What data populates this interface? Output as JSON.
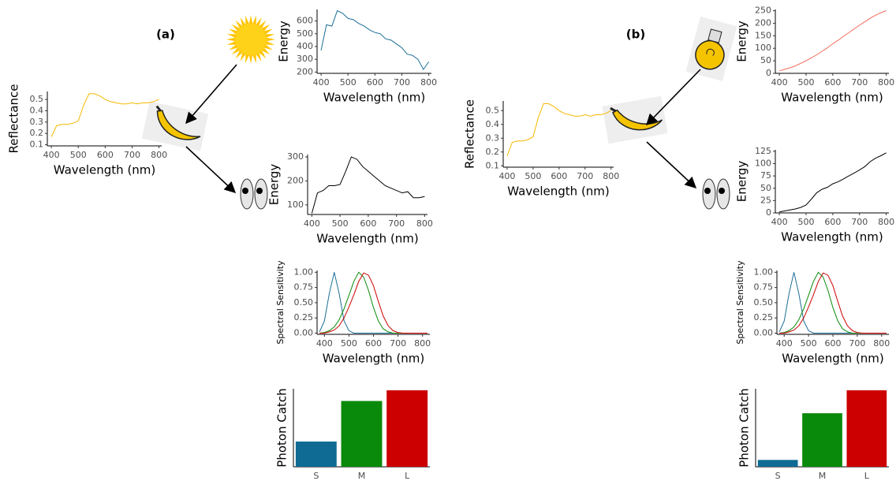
{
  "panels": [
    {
      "label": "(a)"
    },
    {
      "label": "(b)"
    }
  ],
  "chart_data": [
    {
      "type": "line",
      "x": [
        400,
        420,
        440,
        460,
        480,
        500,
        520,
        540,
        560,
        580,
        600,
        620,
        640,
        660,
        680,
        700,
        720,
        740,
        760,
        780,
        800
      ],
      "values": [
        0.17,
        0.27,
        0.28,
        0.28,
        0.29,
        0.31,
        0.45,
        0.55,
        0.55,
        0.53,
        0.5,
        0.48,
        0.47,
        0.46,
        0.46,
        0.47,
        0.46,
        0.47,
        0.47,
        0.48,
        0.5
      ],
      "color": "#f5b800",
      "xlim": [
        385,
        810
      ],
      "ylim": [
        0.09,
        0.57
      ],
      "xticks": [
        400,
        500,
        600,
        700,
        800
      ],
      "yticks": [
        0.1,
        0.2,
        0.3,
        0.4,
        0.5
      ],
      "x_label": "Wavelength (nm)",
      "y_label": "Reflectance"
    },
    {
      "type": "line",
      "x": [
        400,
        420,
        440,
        460,
        480,
        500,
        520,
        540,
        560,
        580,
        600,
        620,
        640,
        660,
        680,
        700,
        720,
        740,
        760,
        780,
        800
      ],
      "values": [
        370,
        570,
        560,
        680,
        660,
        620,
        610,
        580,
        560,
        530,
        510,
        500,
        460,
        450,
        420,
        390,
        340,
        330,
        300,
        220,
        280
      ],
      "color": "#1a6e96",
      "xlim": [
        385,
        810
      ],
      "ylim": [
        190,
        690
      ],
      "xticks": [
        400,
        500,
        600,
        700,
        800
      ],
      "yticks": [
        200,
        300,
        400,
        500,
        600
      ],
      "x_label": "Wavelength (nm)",
      "y_label": "Energy"
    },
    {
      "type": "line",
      "x": [
        400,
        420,
        440,
        460,
        480,
        500,
        520,
        540,
        560,
        580,
        600,
        620,
        640,
        660,
        680,
        700,
        720,
        740,
        760,
        780,
        800
      ],
      "values": [
        65,
        150,
        160,
        180,
        180,
        185,
        240,
        300,
        290,
        260,
        240,
        220,
        200,
        180,
        170,
        160,
        150,
        155,
        130,
        130,
        135
      ],
      "color": "#000000",
      "xlim": [
        385,
        810
      ],
      "ylim": [
        60,
        310
      ],
      "xticks": [
        400,
        500,
        600,
        700,
        800
      ],
      "yticks": [
        100,
        200,
        300
      ],
      "x_label": "Wavelength (nm)",
      "y_label": "Energy"
    },
    {
      "type": "multiline",
      "x": [
        380,
        400,
        420,
        440,
        460,
        480,
        500,
        520,
        540,
        560,
        580,
        600,
        620,
        640,
        660,
        680,
        700,
        720,
        740,
        760,
        780,
        800,
        820
      ],
      "series": [
        {
          "color": "#1a6e96",
          "values": [
            0.02,
            0.2,
            0.65,
            1.0,
            0.65,
            0.2,
            0.04,
            0,
            0,
            0,
            0,
            0,
            0,
            0,
            0,
            0,
            0,
            0,
            0,
            0,
            0,
            0,
            0
          ]
        },
        {
          "color": "#0a8a0a",
          "values": [
            0,
            0.01,
            0.04,
            0.1,
            0.22,
            0.4,
            0.62,
            0.85,
            1.0,
            0.92,
            0.7,
            0.42,
            0.2,
            0.07,
            0.02,
            0,
            0,
            0,
            0,
            0,
            0,
            0,
            0
          ]
        },
        {
          "color": "#cc0000",
          "values": [
            0,
            0,
            0.02,
            0.05,
            0.12,
            0.25,
            0.43,
            0.63,
            0.85,
            0.99,
            0.95,
            0.78,
            0.52,
            0.28,
            0.12,
            0.04,
            0.01,
            0,
            0,
            0,
            0,
            0,
            0
          ]
        }
      ],
      "xlim": [
        370,
        830
      ],
      "ylim": [
        -0.02,
        1.03
      ],
      "xticks": [
        400,
        500,
        600,
        700,
        800
      ],
      "yticks": [
        {
          "value": 0,
          "label": "0.00"
        },
        0.25,
        {
          "value": 0.5,
          "label": "0.50"
        },
        0.75,
        {
          "value": 1,
          "label": "1.00"
        }
      ],
      "x_label": "Wavelength (nm)",
      "y_label": "Spectral Sensitivity"
    },
    {
      "type": "bar",
      "categories": [
        "S",
        "M",
        "L"
      ],
      "values": [
        0.33,
        0.86,
        1.0
      ],
      "colors": [
        "#0f6b94",
        "#0a8a0a",
        "#cc0000"
      ],
      "ylim": [
        0,
        1.02
      ],
      "y_label": "Photon Catch"
    },
    {
      "type": "line",
      "x": [
        400,
        420,
        440,
        460,
        480,
        500,
        520,
        540,
        560,
        580,
        600,
        620,
        640,
        660,
        680,
        700,
        720,
        740,
        760,
        780,
        800
      ],
      "values": [
        0.17,
        0.27,
        0.28,
        0.28,
        0.29,
        0.31,
        0.45,
        0.55,
        0.55,
        0.53,
        0.5,
        0.48,
        0.47,
        0.46,
        0.46,
        0.47,
        0.46,
        0.47,
        0.47,
        0.48,
        0.5
      ],
      "color": "#f5b800",
      "xlim": [
        385,
        810
      ],
      "ylim": [
        0.09,
        0.57
      ],
      "xticks": [
        400,
        500,
        600,
        700,
        800
      ],
      "yticks": [
        0.1,
        0.2,
        0.3,
        0.4,
        0.5
      ],
      "x_label": "Wavelength (nm)",
      "y_label": "Reflectance"
    },
    {
      "type": "line",
      "x": [
        400,
        420,
        440,
        460,
        480,
        500,
        520,
        540,
        560,
        580,
        600,
        620,
        640,
        660,
        680,
        700,
        720,
        740,
        760,
        780,
        800
      ],
      "values": [
        10,
        16,
        22,
        30,
        40,
        50,
        62,
        74,
        88,
        102,
        118,
        132,
        148,
        162,
        178,
        192,
        206,
        220,
        232,
        242,
        250
      ],
      "color": "#f26b5b",
      "xlim": [
        385,
        810
      ],
      "ylim": [
        0,
        255
      ],
      "xticks": [
        400,
        500,
        600,
        700,
        800
      ],
      "yticks": [
        0,
        50,
        100,
        150,
        200,
        250
      ],
      "x_label": "Wavelength (nm)",
      "y_label": "Energy"
    },
    {
      "type": "line",
      "x": [
        400,
        420,
        440,
        460,
        480,
        500,
        520,
        540,
        560,
        580,
        600,
        620,
        640,
        660,
        680,
        700,
        720,
        740,
        760,
        780,
        800
      ],
      "values": [
        2,
        4,
        6,
        8,
        11,
        16,
        28,
        41,
        48,
        52,
        59,
        63,
        69,
        75,
        81,
        87,
        94,
        104,
        111,
        116,
        122
      ],
      "color": "#000000",
      "xlim": [
        385,
        810
      ],
      "ylim": [
        0,
        128
      ],
      "xticks": [
        400,
        500,
        600,
        700,
        800
      ],
      "yticks": [
        0,
        25,
        50,
        75,
        100,
        125
      ],
      "x_label": "Wavelength (nm)",
      "y_label": "Energy"
    },
    {
      "type": "multiline",
      "x": [
        380,
        400,
        420,
        440,
        460,
        480,
        500,
        520,
        540,
        560,
        580,
        600,
        620,
        640,
        660,
        680,
        700,
        720,
        740,
        760,
        780,
        800,
        820
      ],
      "series": [
        {
          "color": "#1a6e96",
          "values": [
            0.02,
            0.2,
            0.65,
            1.0,
            0.65,
            0.2,
            0.04,
            0,
            0,
            0,
            0,
            0,
            0,
            0,
            0,
            0,
            0,
            0,
            0,
            0,
            0,
            0,
            0
          ]
        },
        {
          "color": "#0a8a0a",
          "values": [
            0,
            0.01,
            0.04,
            0.1,
            0.22,
            0.4,
            0.62,
            0.85,
            1.0,
            0.92,
            0.7,
            0.42,
            0.2,
            0.07,
            0.02,
            0,
            0,
            0,
            0,
            0,
            0,
            0,
            0
          ]
        },
        {
          "color": "#cc0000",
          "values": [
            0,
            0,
            0.02,
            0.05,
            0.12,
            0.25,
            0.43,
            0.63,
            0.85,
            0.99,
            0.95,
            0.78,
            0.52,
            0.28,
            0.12,
            0.04,
            0.01,
            0,
            0,
            0,
            0,
            0,
            0
          ]
        }
      ],
      "xlim": [
        370,
        830
      ],
      "ylim": [
        -0.02,
        1.03
      ],
      "xticks": [
        400,
        500,
        600,
        700,
        800
      ],
      "yticks": [
        {
          "value": 0,
          "label": "0.00"
        },
        0.25,
        {
          "value": 0.5,
          "label": "0.50"
        },
        0.75,
        {
          "value": 1,
          "label": "1.00"
        }
      ],
      "x_label": "Wavelength (nm)",
      "y_label": "Spectral Sensitivity"
    },
    {
      "type": "bar",
      "categories": [
        "S",
        "M",
        "L"
      ],
      "values": [
        0.09,
        0.7,
        1.0
      ],
      "colors": [
        "#0f6b94",
        "#0a8a0a",
        "#cc0000"
      ],
      "ylim": [
        0,
        1.02
      ],
      "y_label": "Photon Catch"
    }
  ]
}
